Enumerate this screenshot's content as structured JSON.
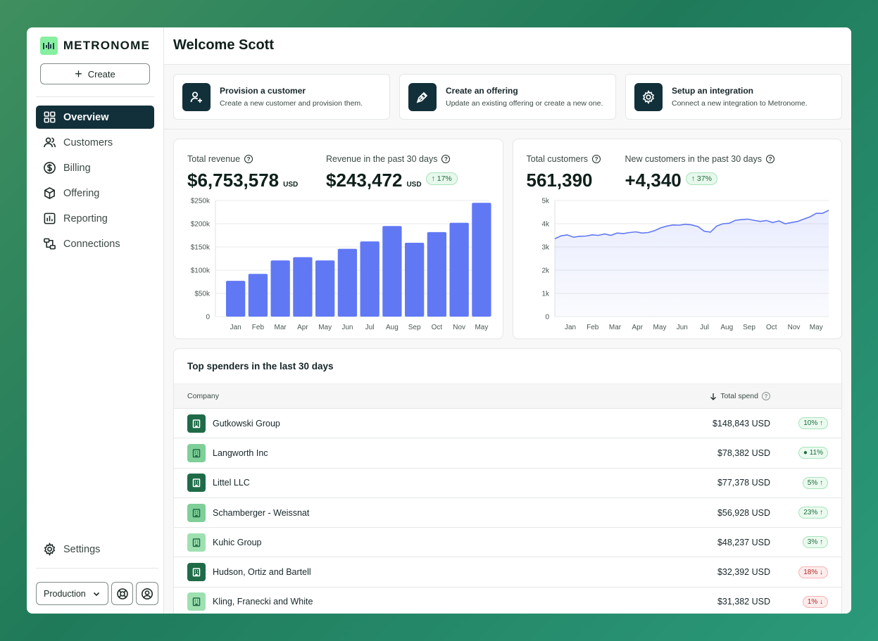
{
  "app": {
    "name": "METRONOME",
    "create_label": "Create"
  },
  "sidebar": {
    "items": [
      {
        "label": "Overview",
        "icon": "grid-icon",
        "active": true
      },
      {
        "label": "Customers",
        "icon": "users-icon",
        "active": false
      },
      {
        "label": "Billing",
        "icon": "dollar-circle-icon",
        "active": false
      },
      {
        "label": "Offering",
        "icon": "box-icon",
        "active": false
      },
      {
        "label": "Reporting",
        "icon": "bar-chart-icon",
        "active": false
      },
      {
        "label": "Connections",
        "icon": "connections-icon",
        "active": false
      }
    ],
    "settings_label": "Settings",
    "environment": "Production"
  },
  "header": {
    "title": "Welcome Scott"
  },
  "actions": [
    {
      "title": "Provision a customer",
      "desc": "Create a new customer and provision them.",
      "icon": "user-plus-icon"
    },
    {
      "title": "Create an offering",
      "desc": "Update an existing offering or create a new one.",
      "icon": "pen-icon"
    },
    {
      "title": "Setup an integration",
      "desc": "Connect a new integration to Metronome.",
      "icon": "gear-icon"
    }
  ],
  "revenue": {
    "total_label": "Total revenue",
    "total_value": "$6,753,578",
    "total_unit": "USD",
    "recent_label": "Revenue in the past 30 days",
    "recent_value": "$243,472",
    "recent_unit": "USD",
    "recent_change": "↑ 17%"
  },
  "customers": {
    "total_label": "Total customers",
    "total_value": "561,390",
    "new_label": "New customers in the past 30 days",
    "new_value": "+4,340",
    "new_change": "↑ 37%"
  },
  "chart_data": [
    {
      "type": "bar",
      "title": "Revenue",
      "categories": [
        "Jan",
        "Feb",
        "Mar",
        "Apr",
        "May",
        "Jun",
        "Jul",
        "Aug",
        "Sep",
        "Oct",
        "Nov",
        "May"
      ],
      "values": [
        77000,
        92000,
        121000,
        128000,
        121000,
        146000,
        162000,
        195000,
        159000,
        182000,
        202000,
        245000
      ],
      "ylim": [
        0,
        250000
      ],
      "ytick_labels": [
        "0",
        "$50k",
        "$100k",
        "$150k",
        "$200k",
        "$250k"
      ],
      "color": "#6178f5"
    },
    {
      "type": "area",
      "title": "Customers",
      "x_tick_labels": [
        "Jan",
        "Feb",
        "Mar",
        "Apr",
        "May",
        "Jun",
        "Jul",
        "Aug",
        "Sep",
        "Oct",
        "Nov",
        "May"
      ],
      "values": [
        3350,
        3480,
        3520,
        3420,
        3460,
        3470,
        3520,
        3500,
        3560,
        3500,
        3600,
        3580,
        3620,
        3650,
        3600,
        3620,
        3700,
        3820,
        3900,
        3950,
        3940,
        3980,
        3950,
        3880,
        3680,
        3640,
        3900,
        4000,
        4020,
        4150,
        4180,
        4200,
        4150,
        4100,
        4140,
        4050,
        4120,
        4000,
        4050,
        4100,
        4200,
        4300,
        4450,
        4450,
        4580
      ],
      "ylim": [
        0,
        5000
      ],
      "ytick_labels": [
        "0",
        "1k",
        "2k",
        "3k",
        "4k",
        "5k"
      ],
      "color": "#6178f5"
    }
  ],
  "table": {
    "title": "Top spenders in the last 30 days",
    "col_company": "Company",
    "col_spend": "Total spend",
    "rows": [
      {
        "company": "Gutkowski Group",
        "spend": "$148,843 USD",
        "change": "10% ↑",
        "trend": "up",
        "icon_bg": "#1f6b48"
      },
      {
        "company": "Langworth Inc",
        "spend": "$78,382 USD",
        "change": "● 11%",
        "trend": "flat",
        "icon_bg": "#7fcf98"
      },
      {
        "company": "Littel LLC",
        "spend": "$77,378 USD",
        "change": "5% ↑",
        "trend": "up",
        "icon_bg": "#1f6b48"
      },
      {
        "company": "Schamberger - Weissnat",
        "spend": "$56,928 USD",
        "change": "23% ↑",
        "trend": "up",
        "icon_bg": "#7fcf98"
      },
      {
        "company": "Kuhic Group",
        "spend": "$48,237 USD",
        "change": "3% ↑",
        "trend": "up",
        "icon_bg": "#9fe0b1"
      },
      {
        "company": "Hudson, Ortiz and Bartell",
        "spend": "$32,392 USD",
        "change": "18% ↓",
        "trend": "down",
        "icon_bg": "#1f6b48"
      },
      {
        "company": "Kling, Franecki and White",
        "spend": "$31,382 USD",
        "change": "1% ↓",
        "trend": "down",
        "icon_bg": "#9fe0b1"
      }
    ]
  }
}
